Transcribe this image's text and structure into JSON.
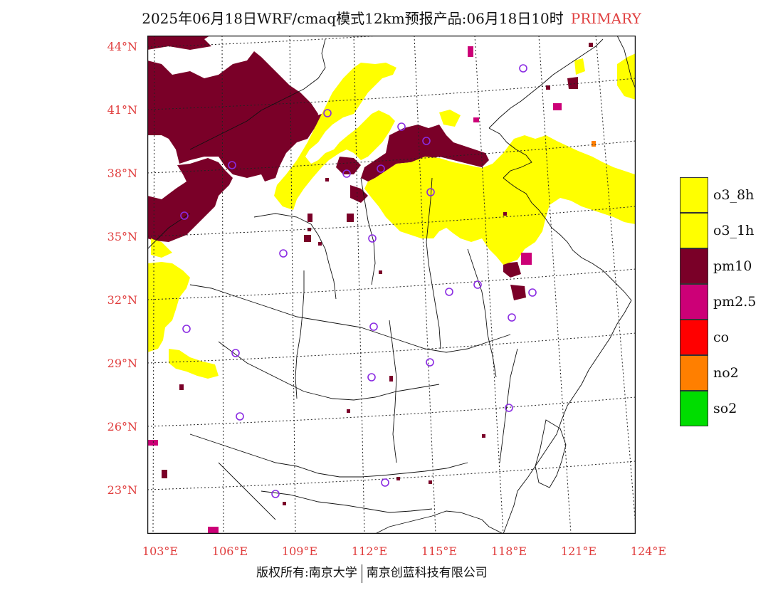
{
  "title": {
    "main": "2025年06月18日WRF/cmaq模式12km预报产品:06月18日10时",
    "tag": "PRIMARY"
  },
  "map": {
    "lat_labels": [
      "44°N",
      "41°N",
      "38°N",
      "35°N",
      "32°N",
      "29°N",
      "26°N",
      "23°N"
    ],
    "lon_labels": [
      "103°E",
      "106°E",
      "109°E",
      "112°E",
      "115°E",
      "118°E",
      "121°E",
      "124°E"
    ]
  },
  "legend": {
    "items": [
      {
        "label": "o3_8h",
        "color": "#ffff00"
      },
      {
        "label": "o3_1h",
        "color": "#ffff00"
      },
      {
        "label": "pm10",
        "color": "#7a0028"
      },
      {
        "label": "pm2.5",
        "color": "#cc0077"
      },
      {
        "label": "co",
        "color": "#ff0000"
      },
      {
        "label": "no2",
        "color": "#ff7f00"
      },
      {
        "label": "so2",
        "color": "#00dd00"
      }
    ]
  },
  "colors": {
    "o3": "#ffff00",
    "pm10": "#7a0028",
    "pm25": "#cc0077",
    "no2": "#ff7f00",
    "city_marker": "#8a2be2",
    "axis_label": "#e03c3c"
  },
  "footer": {
    "left": "版权所有:南京大学",
    "right": "南京创蓝科技有限公司"
  }
}
